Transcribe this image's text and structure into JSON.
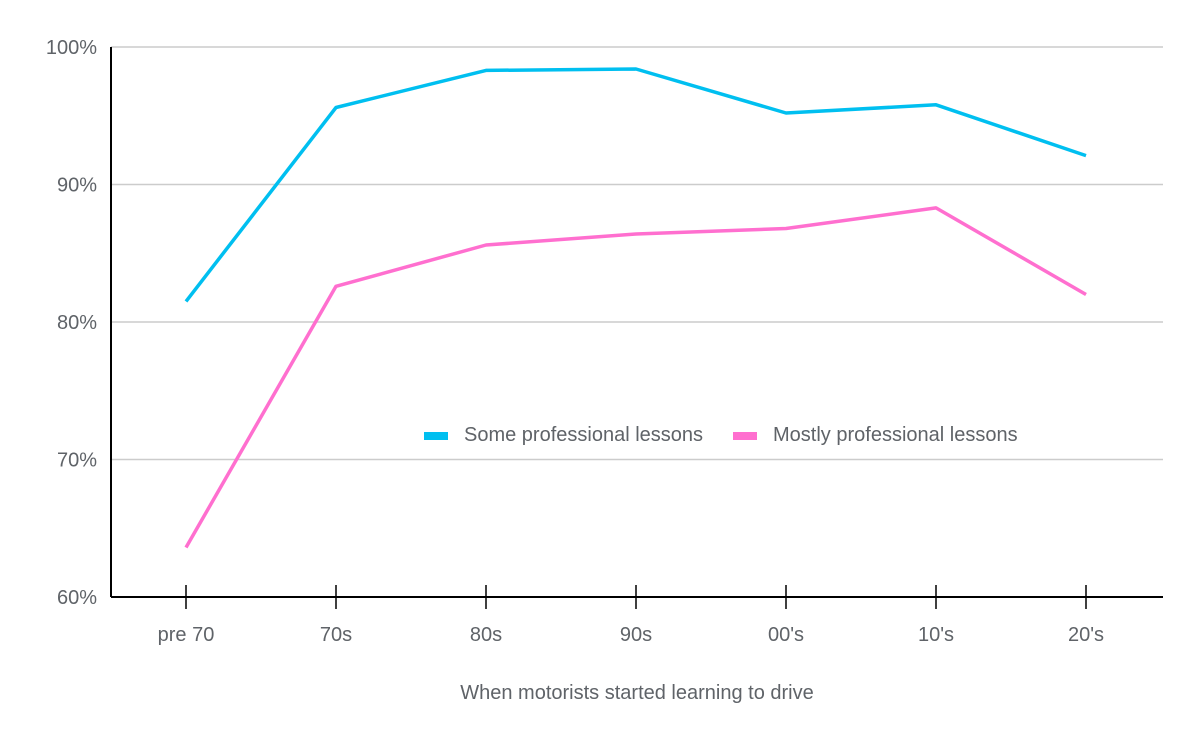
{
  "chart_data": {
    "type": "line",
    "title": "",
    "xlabel": "When motorists started learning to drive",
    "ylabel": "",
    "categories": [
      "pre 70",
      "70s",
      "80s",
      "90s",
      "00's",
      "10's",
      "20's"
    ],
    "series": [
      {
        "name": "Some professional lessons",
        "color": "#00BFF0",
        "values": [
          81.5,
          95.6,
          98.3,
          98.4,
          95.2,
          95.8,
          92.1
        ]
      },
      {
        "name": "Mostly professional lessons",
        "color": "#FF6FCF",
        "values": [
          63.6,
          82.6,
          85.6,
          86.4,
          86.8,
          88.3,
          82.0
        ]
      }
    ],
    "ylim": [
      60,
      100
    ],
    "yticks": [
      "60%",
      "70%",
      "80%",
      "90%",
      "100%"
    ],
    "grid": true,
    "legend_position": "inside-right-middle"
  }
}
